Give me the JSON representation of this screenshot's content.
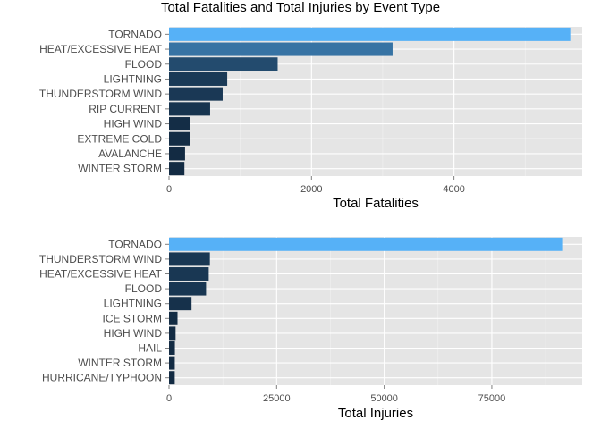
{
  "title": "Total Fatalities and Total Injuries by Event Type",
  "palette": {
    "low": "#132B43",
    "high": "#56B1F7"
  },
  "chart_data": [
    {
      "type": "bar",
      "orientation": "horizontal",
      "categories": [
        "TORNADO",
        "HEAT/EXCESSIVE HEAT",
        "FLOOD",
        "LIGHTNING",
        "THUNDERSTORM WIND",
        "RIP CURRENT",
        "HIGH WIND",
        "EXTREME COLD",
        "AVALANCHE",
        "WINTER STORM"
      ],
      "values": [
        5633,
        3138,
        1525,
        817,
        753,
        577,
        299,
        290,
        225,
        216
      ],
      "xlabel": "Total Fatalities",
      "ylabel": "",
      "xlim": [
        0,
        5800
      ],
      "xticks": [
        0,
        2000,
        4000
      ],
      "xtick_labels": [
        "0",
        "2000",
        "4000"
      ],
      "grid": true,
      "legend": "none"
    },
    {
      "type": "bar",
      "orientation": "horizontal",
      "categories": [
        "TORNADO",
        "THUNDERSTORM WIND",
        "HEAT/EXCESSIVE HEAT",
        "FLOOD",
        "LIGHTNING",
        "ICE STORM",
        "HIGH WIND",
        "HAIL",
        "WINTER STORM",
        "HURRICANE/TYPHOON"
      ],
      "values": [
        91346,
        9493,
        9224,
        8604,
        5230,
        1975,
        1523,
        1361,
        1338,
        1328
      ],
      "xlabel": "Total Injuries",
      "ylabel": "",
      "xlim": [
        0,
        96000
      ],
      "xticks": [
        0,
        25000,
        50000,
        75000
      ],
      "xtick_labels": [
        "0",
        "25000",
        "50000",
        "75000"
      ],
      "grid": true,
      "legend": "none"
    }
  ]
}
